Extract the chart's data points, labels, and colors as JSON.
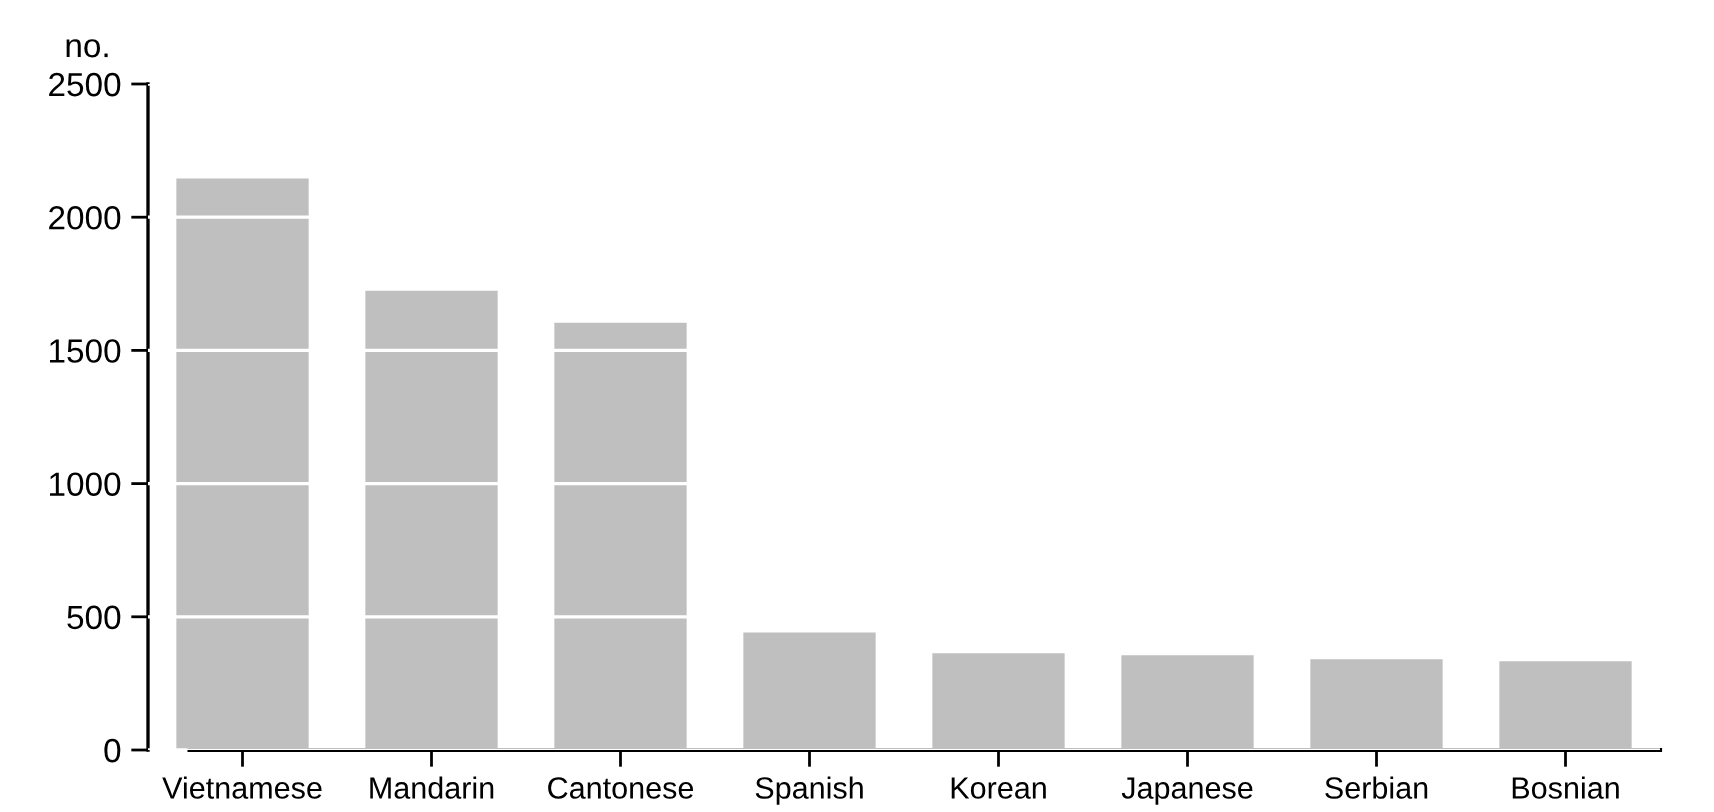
{
  "chart_data": {
    "type": "bar",
    "ylabel": "no.",
    "categories": [
      "Vietnamese",
      "Mandarin",
      "Cantonese",
      "Spanish",
      "Korean",
      "Japanese",
      "Serbian",
      "Bosnian"
    ],
    "values": [
      2145,
      1724,
      1604,
      441,
      363,
      356,
      341,
      333
    ],
    "color": "#bfbfbf",
    "ylim": [
      0,
      2500
    ],
    "yticks": [
      0,
      500,
      1000,
      1500,
      2000,
      2500
    ],
    "grid": "y"
  }
}
